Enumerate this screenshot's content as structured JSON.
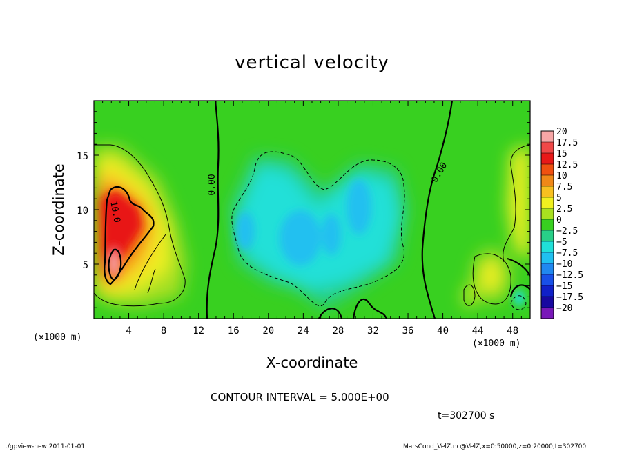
{
  "chart_data": {
    "type": "heatmap",
    "title": "vertical velocity",
    "xlabel": "X-coordinate",
    "ylabel": "Z-coordinate",
    "x_unit": "(×1000 m)",
    "y_unit": "(×1000 m)",
    "xlim": [
      0,
      50
    ],
    "ylim": [
      0,
      20
    ],
    "x_ticks": [
      4,
      8,
      12,
      16,
      20,
      24,
      28,
      32,
      36,
      40,
      44,
      48
    ],
    "y_ticks": [
      5,
      10,
      15
    ],
    "colorbar": {
      "levels": [
        "20",
        "17.5",
        "15",
        "12.5",
        "10",
        "7.5",
        "5",
        "2.5",
        "0",
        "−2.5",
        "−5",
        "−7.5",
        "−10",
        "−12.5",
        "−15",
        "−17.5",
        "−20"
      ],
      "colors": [
        "#f7a6a6",
        "#f04848",
        "#e81818",
        "#f05010",
        "#f08818",
        "#f8c020",
        "#f0f020",
        "#a8e020",
        "#38d020",
        "#28d088",
        "#20e0d8",
        "#20c0f0",
        "#2088f0",
        "#1850e8",
        "#1020c8",
        "#1808a0",
        "#7818b8"
      ]
    },
    "contour_interval": "CONTOUR INTERVAL = 5.000E+00",
    "contour_labels": [
      "0.00",
      "0.00",
      "10.0"
    ]
  },
  "annotations": {
    "time": "t=302700  s",
    "footer_left": "./gpview-new   2011-01-01",
    "footer_right": "MarsCond_VelZ.nc@VelZ,x=0:50000,z=0:20000,t=302700"
  }
}
